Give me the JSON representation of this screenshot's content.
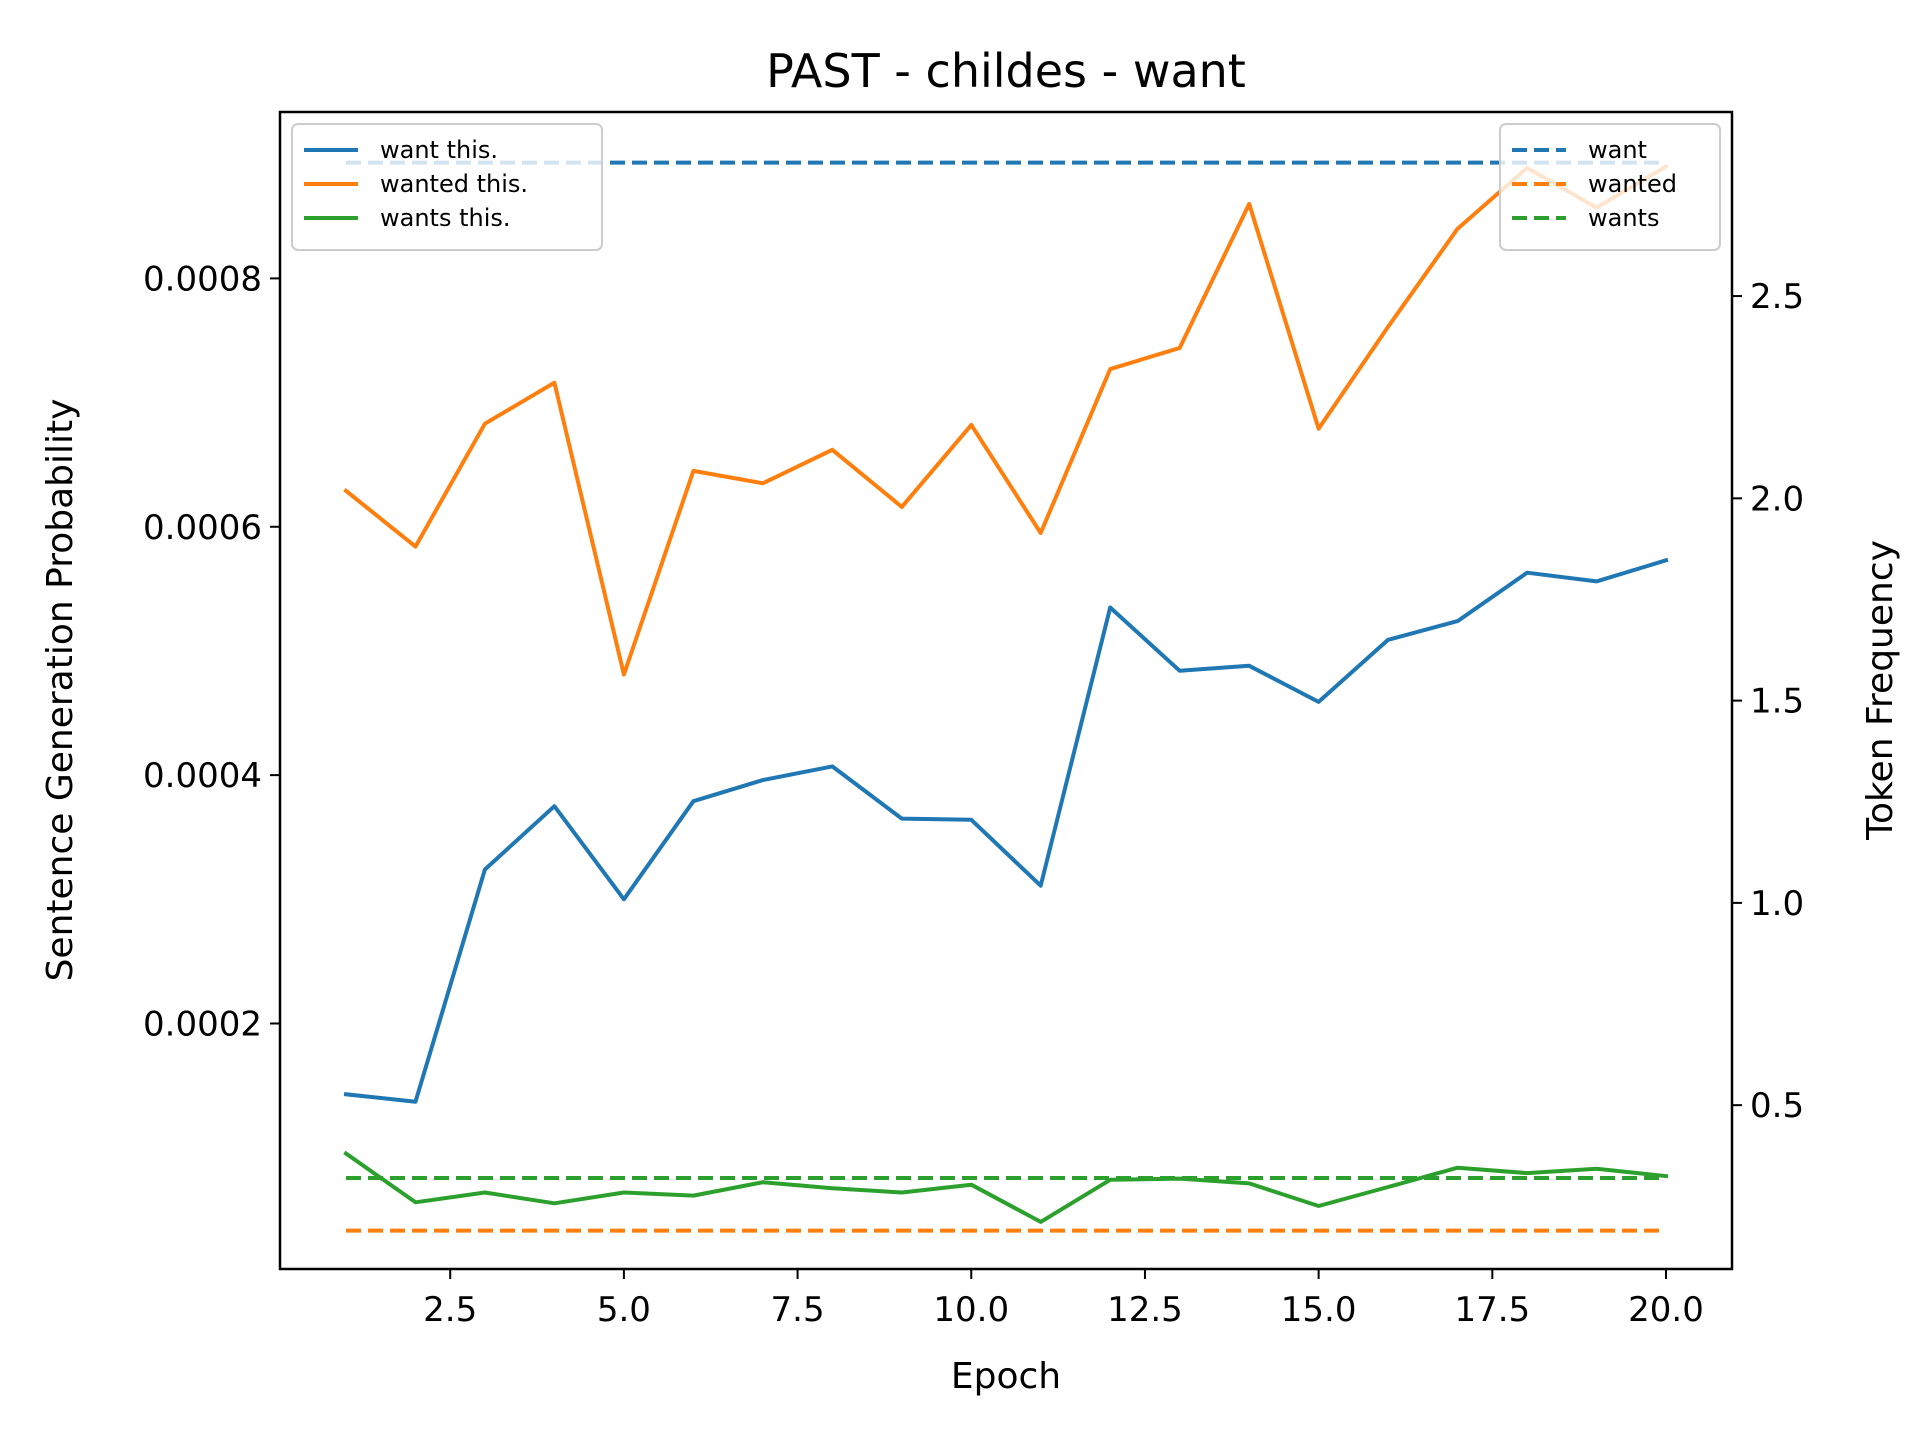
{
  "chart_data": {
    "type": "line",
    "title": "PAST - childes - want",
    "xlabel": "Epoch",
    "ylabel": "Sentence Generation Probability",
    "y2label": "Token Frequency",
    "xlim": [
      0.05,
      20.95
    ],
    "ylim": [
      2.3e-06,
      0.000934
    ],
    "y2lim": [
      0.095,
      2.955
    ],
    "x_ticks": [
      "2.5",
      "5.0",
      "7.5",
      "10.0",
      "12.5",
      "15.0",
      "17.5",
      "20.0"
    ],
    "y_ticks": [
      "0.0002",
      "0.0004",
      "0.0006",
      "0.0008"
    ],
    "y2_ticks": [
      "0.5",
      "1.0",
      "1.5",
      "2.0",
      "2.5"
    ],
    "x": [
      1,
      2,
      3,
      4,
      5,
      6,
      7,
      8,
      9,
      10,
      11,
      12,
      13,
      14,
      15,
      16,
      17,
      18,
      19,
      20
    ],
    "series": [
      {
        "name": "want this.",
        "axis": "left",
        "color": "#1f77b4",
        "style": "solid",
        "values": [
          0.000143,
          0.000137,
          0.000324,
          0.000375,
          0.0003,
          0.000379,
          0.000396,
          0.000407,
          0.000365,
          0.000364,
          0.000311,
          0.000535,
          0.000484,
          0.000488,
          0.000459,
          0.000509,
          0.000524,
          0.000563,
          0.000556,
          0.000573
        ]
      },
      {
        "name": "wanted this.",
        "axis": "left",
        "color": "#ff7f0e",
        "style": "solid",
        "values": [
          0.000629,
          0.000584,
          0.000683,
          0.000716,
          0.000481,
          0.000645,
          0.000635,
          0.000662,
          0.000616,
          0.000682,
          0.000595,
          0.000727,
          0.000744,
          0.00086,
          0.000679,
          0.000761,
          0.00084,
          0.000889,
          0.000857,
          0.00089
        ]
      },
      {
        "name": "wants this.",
        "axis": "left",
        "color": "#2ca02c",
        "style": "solid",
        "values": [
          9.53e-05,
          5.6e-05,
          6.39e-05,
          5.52e-05,
          6.39e-05,
          6.14e-05,
          7.22e-05,
          6.73e-05,
          6.39e-05,
          7.02e-05,
          4.02e-05,
          7.41e-05,
          7.51e-05,
          7.12e-05,
          5.3e-05,
          6.83e-05,
          8.39e-05,
          7.95e-05,
          8.3e-05,
          7.71e-05
        ]
      },
      {
        "name": "want",
        "axis": "right",
        "color": "#1f77b4",
        "style": "dashed",
        "values": [
          2.83,
          2.83,
          2.83,
          2.83,
          2.83,
          2.83,
          2.83,
          2.83,
          2.83,
          2.83,
          2.83,
          2.83,
          2.83,
          2.83,
          2.83,
          2.83,
          2.83,
          2.83,
          2.83,
          2.83
        ]
      },
      {
        "name": "wanted",
        "axis": "right",
        "color": "#ff7f0e",
        "style": "dashed",
        "values": [
          0.19,
          0.19,
          0.19,
          0.19,
          0.19,
          0.19,
          0.19,
          0.19,
          0.19,
          0.19,
          0.19,
          0.19,
          0.19,
          0.19,
          0.19,
          0.19,
          0.19,
          0.19,
          0.19,
          0.19
        ]
      },
      {
        "name": "wants",
        "axis": "right",
        "color": "#2ca02c",
        "style": "dashed",
        "values": [
          0.32,
          0.32,
          0.32,
          0.32,
          0.32,
          0.32,
          0.32,
          0.32,
          0.32,
          0.32,
          0.32,
          0.32,
          0.32,
          0.32,
          0.32,
          0.32,
          0.32,
          0.32,
          0.32,
          0.32
        ]
      }
    ],
    "legend_left": {
      "placement": "upper-left",
      "items": [
        "want this.",
        "wanted this.",
        "wants this."
      ]
    },
    "legend_right": {
      "placement": "upper-right",
      "items": [
        "want",
        "wanted",
        "wants"
      ]
    },
    "grid": false
  }
}
